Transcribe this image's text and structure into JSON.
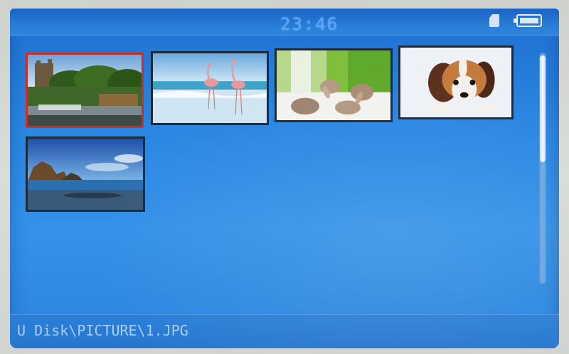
{
  "status": {
    "clock": "23:46",
    "storage_icon": "sd-card-icon",
    "battery_icon": "battery-icon"
  },
  "gallery": {
    "thumbnails": [
      {
        "name": "thumb-castle",
        "selected": true
      },
      {
        "name": "thumb-flamingos",
        "selected": false
      },
      {
        "name": "thumb-bunnies",
        "selected": false
      },
      {
        "name": "thumb-puppy",
        "selected": false
      },
      {
        "name": "thumb-beach",
        "selected": false
      }
    ],
    "selected_border_color": "#c8302a"
  },
  "footer": {
    "path": "U Disk\\PICTURE\\1.JPG"
  },
  "colors": {
    "screen": "#2a86e2",
    "clock": "#5aa6ff"
  }
}
